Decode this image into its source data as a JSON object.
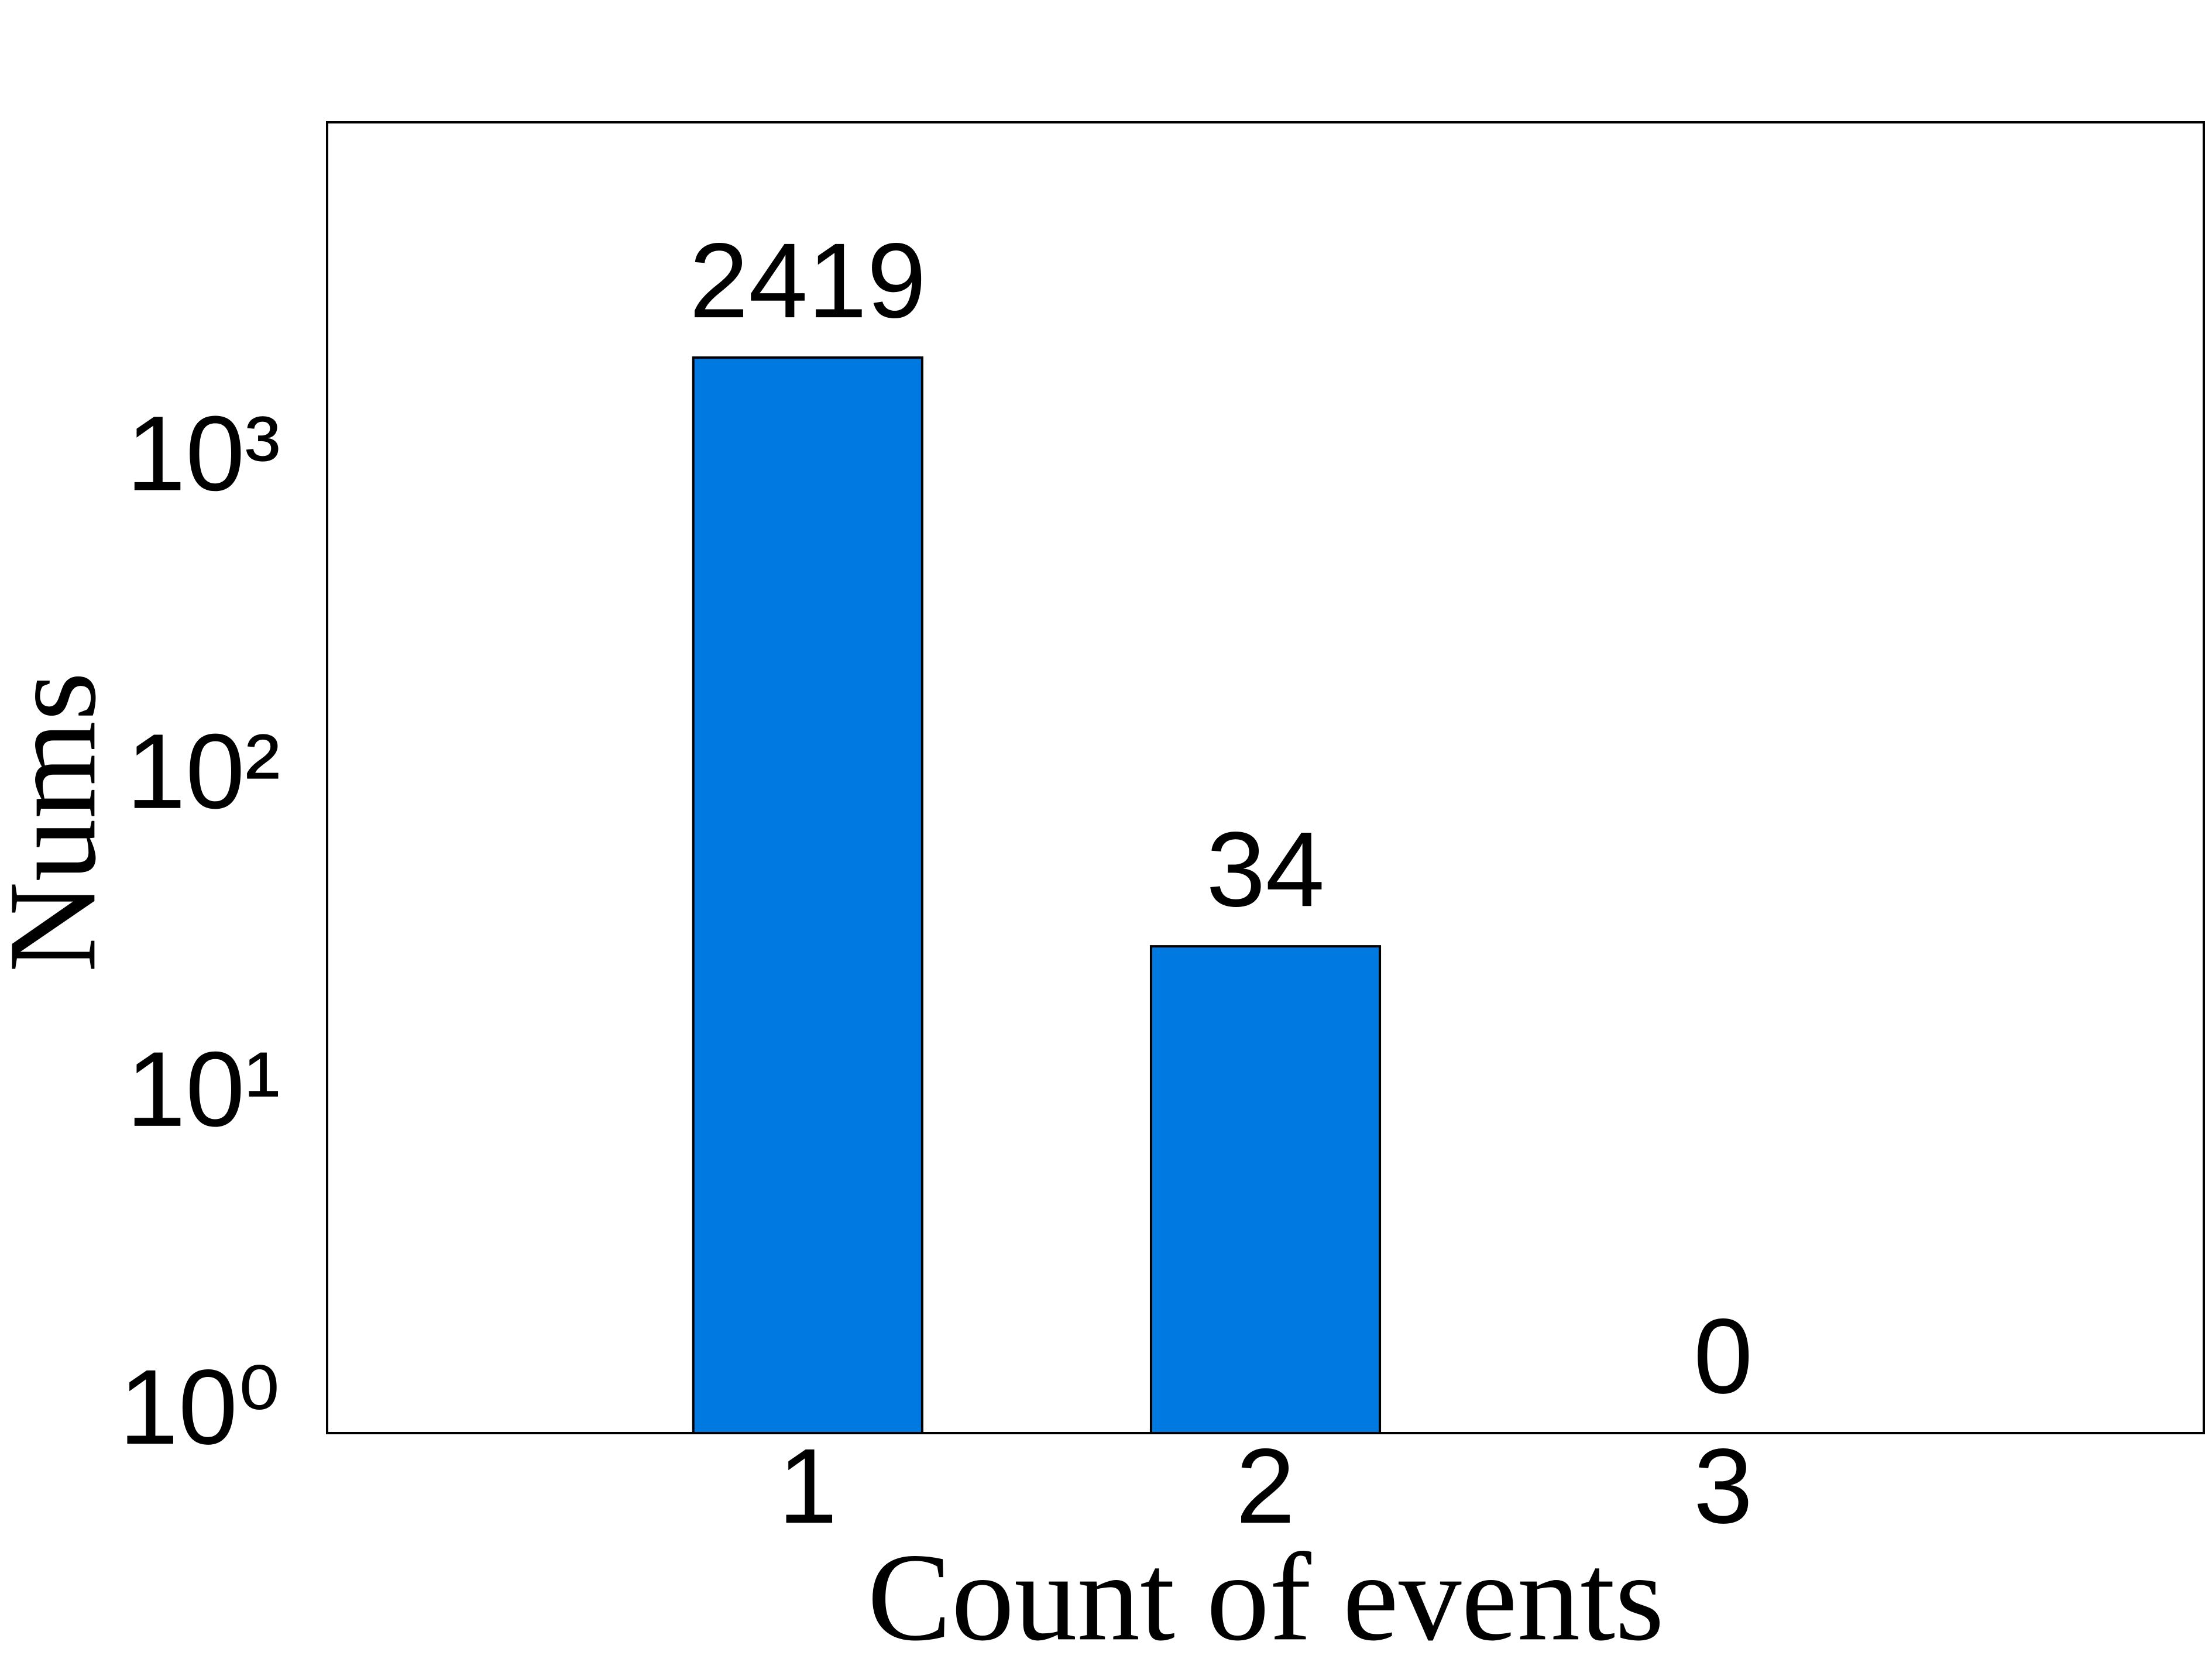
{
  "chart_data": {
    "type": "bar",
    "x_label": "Count of events",
    "y_label": "Nums",
    "x": [
      1,
      2,
      3
    ],
    "values": [
      2419,
      34,
      0
    ],
    "color": "#0079e1",
    "xlim": [
      -0.05,
      4.05
    ],
    "xticks": [
      1,
      2,
      3
    ],
    "ylim": [
      1,
      13300
    ],
    "y_scale": "log",
    "yticks": [
      {
        "value": 1,
        "label": "10⁰"
      },
      {
        "value": 10,
        "label": "10¹"
      },
      {
        "value": 100,
        "label": "10²"
      },
      {
        "value": 1000,
        "label": "10³"
      }
    ],
    "grid": false
  }
}
